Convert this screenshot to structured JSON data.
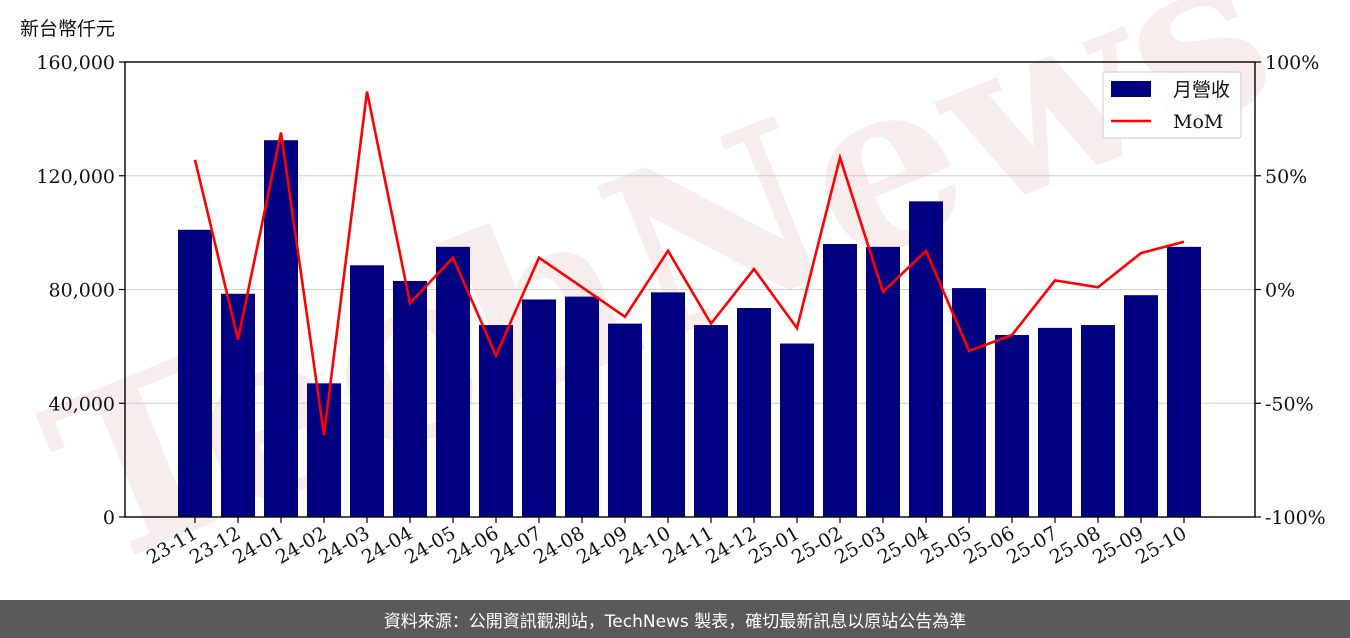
{
  "chart_data": {
    "type": "bar",
    "unit_label": "新台幣仟元",
    "categories": [
      "23-11",
      "23-12",
      "24-01",
      "24-02",
      "24-03",
      "24-04",
      "24-05",
      "24-06",
      "24-07",
      "24-08",
      "24-09",
      "24-10",
      "24-11",
      "24-12",
      "25-01",
      "25-02",
      "25-03",
      "25-04",
      "25-05",
      "25-06",
      "25-07",
      "25-08",
      "25-09",
      "25-10"
    ],
    "series": [
      {
        "name": "月營收",
        "type": "bar",
        "axis": "left",
        "color": "#000080",
        "values": [
          101000,
          78500,
          132500,
          47000,
          88500,
          83000,
          95000,
          67500,
          76500,
          77500,
          68000,
          79000,
          67500,
          73500,
          61000,
          96000,
          95000,
          111000,
          80500,
          64000,
          66500,
          67500,
          78000,
          95000
        ]
      },
      {
        "name": "MoM",
        "type": "line",
        "axis": "right",
        "color": "#ff0000",
        "values": [
          57,
          -22,
          69,
          -64,
          87,
          -6,
          14,
          -29,
          14,
          1,
          -12,
          17,
          -15,
          9,
          -17,
          58,
          -1,
          17,
          -27,
          -20,
          4,
          1,
          16,
          21
        ]
      }
    ],
    "y_left": {
      "min": 0,
      "max": 160000,
      "ticks": [
        0,
        40000,
        80000,
        120000,
        160000
      ],
      "tick_labels": [
        "0",
        "40,000",
        "80,000",
        "120,000",
        "160,000"
      ]
    },
    "y_right": {
      "min": -100,
      "max": 100,
      "ticks": [
        -100,
        -50,
        0,
        50,
        100
      ],
      "tick_labels": [
        "-100%",
        "-50%",
        "0%",
        "50%",
        "100%"
      ]
    },
    "grid": true,
    "legend_position": "top-right"
  },
  "watermark": "TechNews",
  "footer": {
    "source": "資料來源：公開資訊觀測站，TechNews 製表，確切最新訊息以原站公告為準"
  },
  "colors": {
    "bar": "#000080",
    "line": "#ff0000",
    "footer_bg": "#5a5a5a"
  }
}
